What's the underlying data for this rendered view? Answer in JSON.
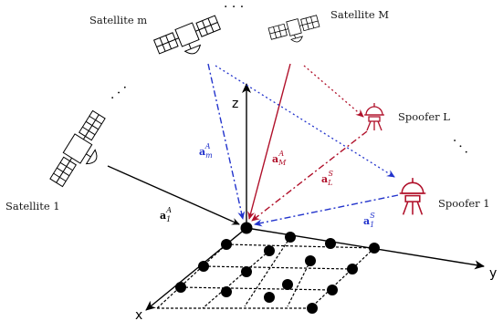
{
  "labels": {
    "satellite_m": "Satellite m",
    "satellite_M": "Satellite M",
    "satellite_1": "Satellite 1",
    "spoofer_L": "Spoofer L",
    "spoofer_1": "Spoofer 1",
    "ellipsis": "· · ·"
  },
  "axes": {
    "x": "x",
    "y": "y",
    "z": "z"
  },
  "vectors": {
    "a1A": {
      "base": "a",
      "sup": "A",
      "sub": "1",
      "color": "#000000"
    },
    "amA": {
      "base": "a",
      "sup": "A",
      "sub": "m",
      "color": "#2233cc"
    },
    "aMA": {
      "base": "a",
      "sup": "A",
      "sub": "M",
      "color": "#b0102a"
    },
    "aLS": {
      "base": "a",
      "sup": "S",
      "sub": "L",
      "color": "#b0102a"
    },
    "a1S": {
      "base": "a",
      "sup": "S",
      "sub": "1",
      "color": "#2233cc"
    }
  },
  "colors": {
    "blue": "#2233cc",
    "red": "#b0102a",
    "black": "#000000"
  },
  "icons": [
    "satellite-icon",
    "spoofer-antenna-icon",
    "antenna-element-dot"
  ]
}
